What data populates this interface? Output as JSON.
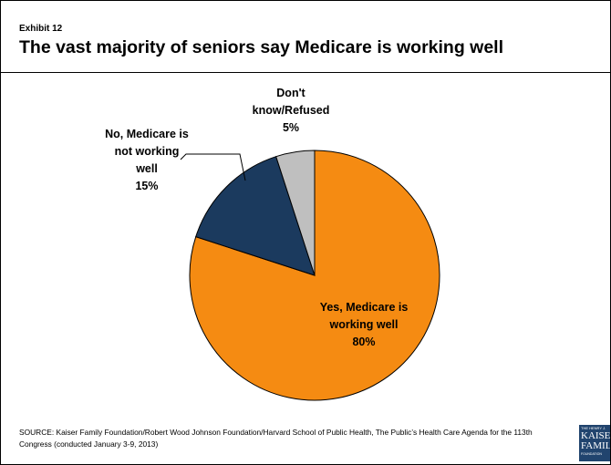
{
  "header": {
    "exhibit_label": "Exhibit 12",
    "title": "The vast majority of seniors say Medicare is working well"
  },
  "chart_data": {
    "type": "pie",
    "title": "The vast majority of seniors say Medicare is working well",
    "slices": [
      {
        "label_lines": [
          "Yes, Medicare is",
          "working well"
        ],
        "value": 80,
        "value_text": "80%",
        "color": "#f58b12"
      },
      {
        "label_lines": [
          "No, Medicare is",
          "not working",
          "well"
        ],
        "value": 15,
        "value_text": "15%",
        "color": "#1b3a5e"
      },
      {
        "label_lines": [
          "Don't",
          "know/Refused"
        ],
        "value": 5,
        "value_text": "5%",
        "color": "#bfbfbf"
      }
    ]
  },
  "footer": {
    "source": "SOURCE: Kaiser Family Foundation/Robert Wood Johnson Foundation/Harvard School of Public Health, The Public’s Health Care Agenda for the 113th Congress (conducted January 3-9, 2013)"
  },
  "logo": {
    "line1": "THE HENRY J.",
    "line2": "KAISER",
    "line3": "FAMILY",
    "line4": "FOUNDATION"
  },
  "colors": {
    "slice_outline": "#000000",
    "title_rule": "#000000",
    "logo_bg": "#21446e"
  }
}
